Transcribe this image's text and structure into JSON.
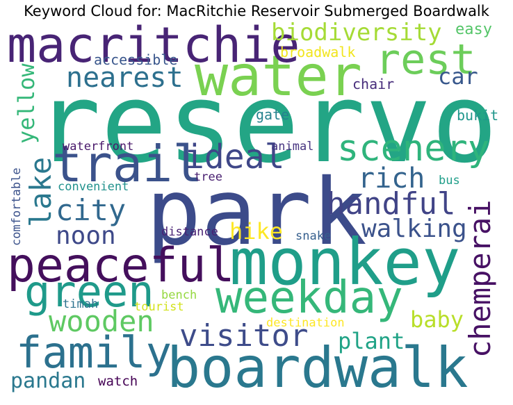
{
  "title": "Keyword Cloud for: MacRitchie Reservoir Submerged Boardwalk",
  "words": [
    {
      "text": "reservoir",
      "color": "#23a585"
    },
    {
      "text": "park",
      "color": "#3c4b8a"
    },
    {
      "text": "monkey",
      "color": "#1f9e89"
    },
    {
      "text": "boardwalk",
      "color": "#2a788e"
    },
    {
      "text": "water",
      "color": "#7ad151"
    },
    {
      "text": "macritchie",
      "color": "#482475"
    },
    {
      "text": "trail",
      "color": "#3b528b"
    },
    {
      "text": "peaceful",
      "color": "#440f5c"
    },
    {
      "text": "weekday",
      "color": "#35b779"
    },
    {
      "text": "family",
      "color": "#2c718e"
    },
    {
      "text": "green",
      "color": "#1f9a8a"
    },
    {
      "text": "scenery",
      "color": "#2fb47c"
    },
    {
      "text": "rest",
      "color": "#6ccd5a"
    },
    {
      "text": "visitor",
      "color": "#3e4c8a"
    },
    {
      "text": "wooden",
      "color": "#5ec962"
    },
    {
      "text": "city",
      "color": "#31688e"
    },
    {
      "text": "ideal",
      "color": "#3f4788"
    },
    {
      "text": "handful",
      "color": "#414487"
    },
    {
      "text": "chemperai",
      "color": "#471164"
    },
    {
      "text": "lake",
      "color": "#2a788e"
    },
    {
      "text": "nearest",
      "color": "#2d708e"
    },
    {
      "text": "biodiversity",
      "color": "#a5db36"
    },
    {
      "text": "walking",
      "color": "#3b528b"
    },
    {
      "text": "rich",
      "color": "#33638d"
    },
    {
      "text": "noon",
      "color": "#3e4989"
    },
    {
      "text": "pandan",
      "color": "#2a788e"
    },
    {
      "text": "plant",
      "color": "#20a386"
    },
    {
      "text": "baby",
      "color": "#b8de29"
    },
    {
      "text": "yellow",
      "color": "#35b779"
    },
    {
      "text": "hike",
      "color": "#fde725"
    },
    {
      "text": "car",
      "color": "#38588c"
    },
    {
      "text": "easy",
      "color": "#54c568"
    },
    {
      "text": "broadwalk",
      "color": "#f1e51d"
    },
    {
      "text": "accessible",
      "color": "#39568c"
    },
    {
      "text": "chair",
      "color": "#472d7b"
    },
    {
      "text": "bukit",
      "color": "#1f968b"
    },
    {
      "text": "gate",
      "color": "#26828e"
    },
    {
      "text": "waterfront",
      "color": "#48186a"
    },
    {
      "text": "animal",
      "color": "#463480"
    },
    {
      "text": "tree",
      "color": "#481f70"
    },
    {
      "text": "convenient",
      "color": "#21918c"
    },
    {
      "text": "bus",
      "color": "#1f9e89"
    },
    {
      "text": "comfortable",
      "color": "#3b528b"
    },
    {
      "text": "distance",
      "color": "#482173"
    },
    {
      "text": "snake",
      "color": "#355f8d"
    },
    {
      "text": "bench",
      "color": "#95d840"
    },
    {
      "text": "timah",
      "color": "#2c728e"
    },
    {
      "text": "tourist",
      "color": "#d2e21b"
    },
    {
      "text": "destination",
      "color": "#fde725"
    },
    {
      "text": "watch",
      "color": "#440154"
    }
  ]
}
